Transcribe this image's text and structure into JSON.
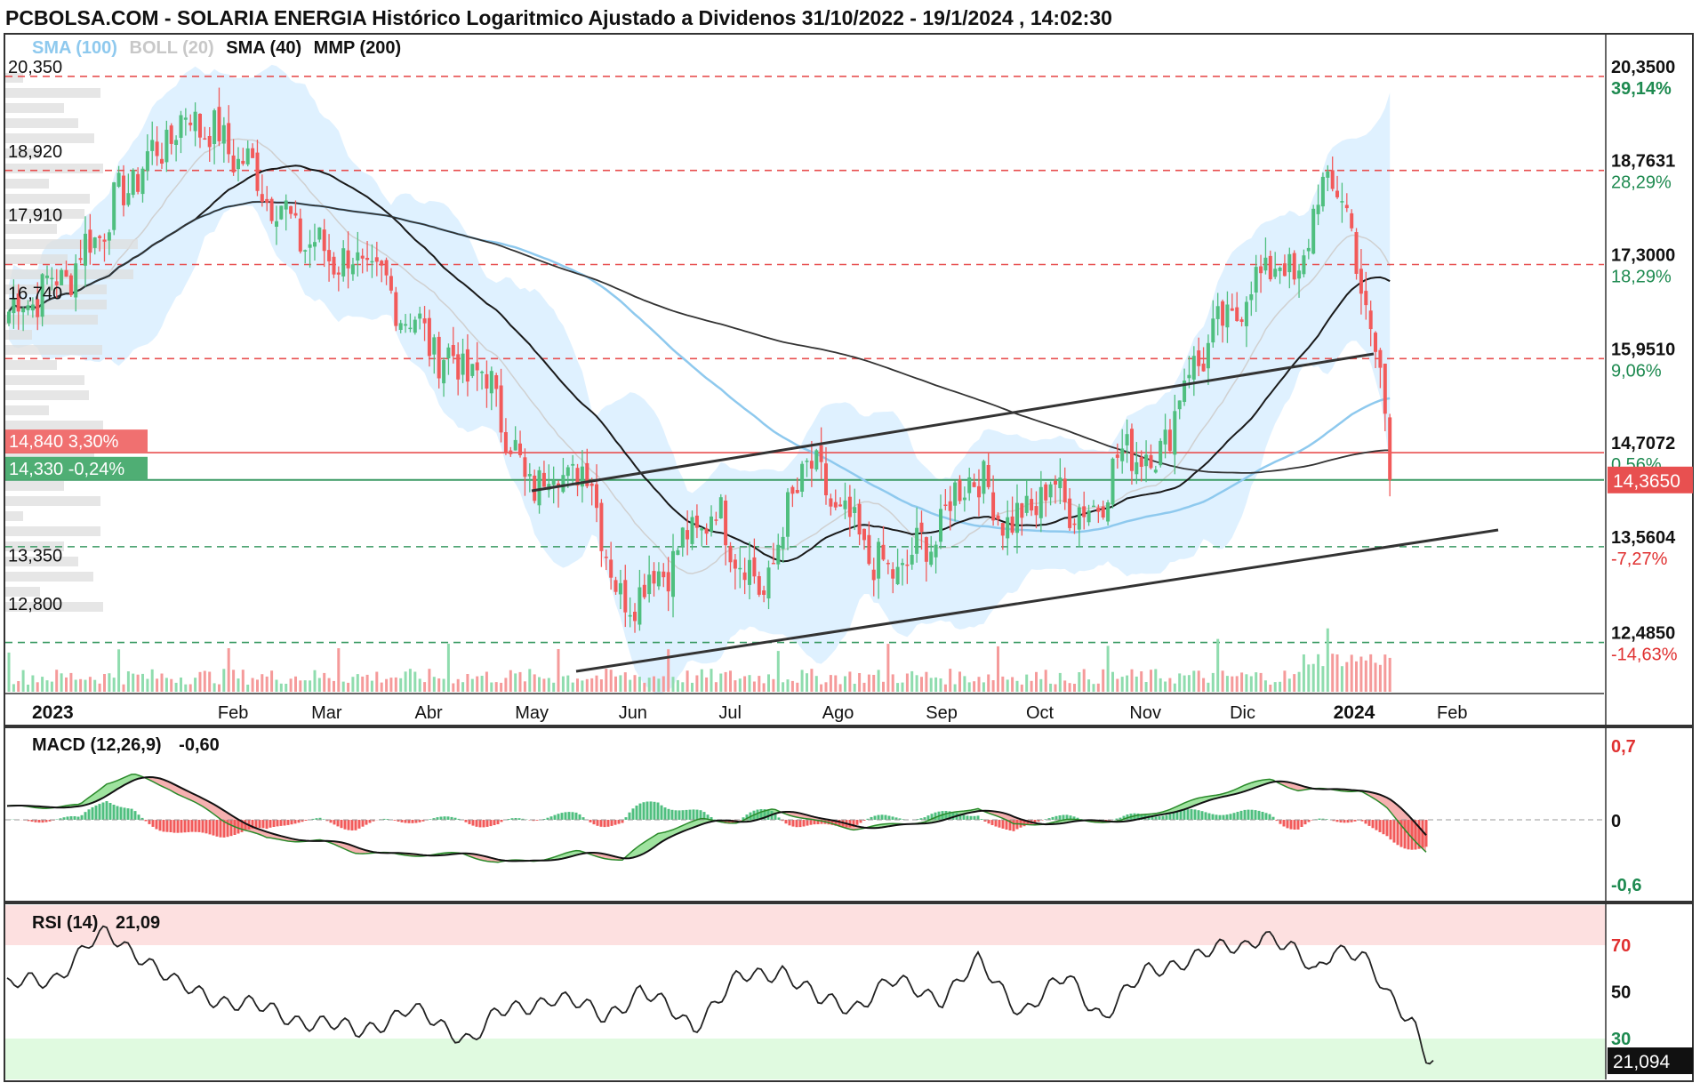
{
  "header": {
    "title": "PCBOLSA.COM - SOLARIA ENERGIA Histórico Logaritmico Ajustado a Dividenos 31/10/2022 - 19/1/2024 , 14:02:30"
  },
  "legend": [
    {
      "text": "SMA (100)",
      "color": "#8ec9ee"
    },
    {
      "text": "BOLL (20)",
      "color": "#c8c8c8"
    },
    {
      "text": "SMA (40)",
      "color": "#111111"
    },
    {
      "text": "MMP (200)",
      "color": "#111111"
    }
  ],
  "colors": {
    "up": "#4fbf7f",
    "down": "#f25a5a",
    "sma100": "#8ec9ee",
    "boll_fill": "#dcefff",
    "red_level": "#e85050",
    "green_level": "#3a9a63",
    "rsi_high_zone": "#fde0e0",
    "rsi_low_zone": "#e0fae0"
  },
  "right_axis_levels": [
    {
      "price": "20,3500",
      "pct": "39,14%",
      "pct_color": "#1e8a50"
    },
    {
      "price": "18,7631",
      "pct": "28,29%",
      "pct_color": "#1e8a50"
    },
    {
      "price": "17,3000",
      "pct": "18,29%",
      "pct_color": "#1e8a50"
    },
    {
      "price": "15,9510",
      "pct": "9,06%",
      "pct_color": "#1e8a50"
    },
    {
      "price": "14,7072",
      "pct": "0,56%",
      "pct_color": "#1e8a50"
    },
    {
      "price": "13,5604",
      "pct": "-7,27%",
      "pct_color": "#e03030"
    },
    {
      "price": "12,4850",
      "pct": "-14,63%",
      "pct_color": "#e03030"
    }
  ],
  "current_price": "14,3650",
  "left_levels": [
    "20,350",
    "18,920",
    "17,910",
    "16,740",
    "13,350",
    "12,800"
  ],
  "left_badges": [
    {
      "price": "14,840",
      "pct": "3,30%"
    },
    {
      "price": "14,330",
      "pct": "-0,24%"
    }
  ],
  "x_axis": {
    "year_2023": "2023",
    "year_2024": "2024",
    "months": [
      "Feb",
      "Mar",
      "Abr",
      "May",
      "Jun",
      "Jul",
      "Ago",
      "Sep",
      "Oct",
      "Nov",
      "Dic",
      "Feb"
    ]
  },
  "macd": {
    "label": "MACD (12,26,9)",
    "value": "-0,60",
    "axis": [
      "0,7",
      "0",
      "-0,6"
    ]
  },
  "rsi": {
    "label": "RSI (14)",
    "value": "21,09",
    "axis": [
      "70",
      "50",
      "30"
    ],
    "current": "21,094"
  },
  "chart_data": {
    "type": "candlestick",
    "title": "SOLARIA ENERGIA Histórico Logaritmico Ajustado a Dividenos 31/10/2022 - 19/1/2024",
    "y_scale": "log",
    "ylim": [
      12.3,
      20.6
    ],
    "price_key_points": [
      {
        "date": "2022-12-01",
        "close": 16.6
      },
      {
        "date": "2022-12-20",
        "close": 17.2
      },
      {
        "date": "2023-01-10",
        "close": 18.8
      },
      {
        "date": "2023-01-25",
        "close": 19.7
      },
      {
        "date": "2023-02-10",
        "close": 18.9
      },
      {
        "date": "2023-03-01",
        "close": 17.6
      },
      {
        "date": "2023-03-20",
        "close": 17.2
      },
      {
        "date": "2023-04-10",
        "close": 16.0
      },
      {
        "date": "2023-04-25",
        "close": 15.6
      },
      {
        "date": "2023-05-05",
        "close": 14.3
      },
      {
        "date": "2023-05-15",
        "close": 14.5
      },
      {
        "date": "2023-05-25",
        "close": 14.4
      },
      {
        "date": "2023-06-02",
        "close": 12.9
      },
      {
        "date": "2023-06-15",
        "close": 13.3
      },
      {
        "date": "2023-07-01",
        "close": 14.0
      },
      {
        "date": "2023-07-15",
        "close": 13.0
      },
      {
        "date": "2023-07-28",
        "close": 14.6
      },
      {
        "date": "2023-08-10",
        "close": 13.8
      },
      {
        "date": "2023-08-22",
        "close": 13.2
      },
      {
        "date": "2023-09-05",
        "close": 13.7
      },
      {
        "date": "2023-09-15",
        "close": 14.5
      },
      {
        "date": "2023-09-28",
        "close": 13.8
      },
      {
        "date": "2023-10-10",
        "close": 14.3
      },
      {
        "date": "2023-10-20",
        "close": 13.9
      },
      {
        "date": "2023-11-02",
        "close": 14.8
      },
      {
        "date": "2023-11-10",
        "close": 14.6
      },
      {
        "date": "2023-11-20",
        "close": 15.8
      },
      {
        "date": "2023-12-05",
        "close": 16.7
      },
      {
        "date": "2023-12-15",
        "close": 17.4
      },
      {
        "date": "2023-12-22",
        "close": 17.0
      },
      {
        "date": "2023-12-29",
        "close": 18.4
      },
      {
        "date": "2024-01-04",
        "close": 18.6
      },
      {
        "date": "2024-01-09",
        "close": 17.3
      },
      {
        "date": "2024-01-12",
        "close": 16.6
      },
      {
        "date": "2024-01-16",
        "close": 15.8
      },
      {
        "date": "2024-01-19",
        "close": 14.365
      }
    ],
    "horizontal_levels": [
      20.35,
      18.7631,
      17.3,
      15.951,
      14.7072,
      14.365,
      13.5604,
      12.485
    ]
  }
}
